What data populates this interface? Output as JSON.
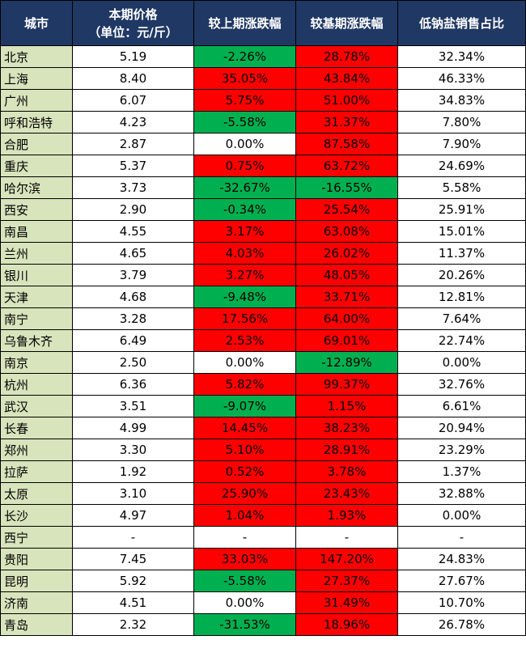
{
  "table": {
    "header": [
      [
        "城市"
      ],
      [
        "本期价格",
        "（单位：元/斤）"
      ],
      [
        "较上期涨跌幅"
      ],
      [
        "较基期涨跌幅"
      ],
      [
        "低钠盐销售占比"
      ]
    ],
    "rows": [
      [
        "北京",
        "5.19",
        "-2.26%",
        "28.78%",
        "32.34%"
      ],
      [
        "上海",
        "8.40",
        "35.05%",
        "43.84%",
        "46.33%"
      ],
      [
        "广州",
        "6.07",
        "5.75%",
        "51.00%",
        "34.83%"
      ],
      [
        "呼和浩特",
        "4.23",
        "-5.58%",
        "31.37%",
        "7.80%"
      ],
      [
        "合肥",
        "2.87",
        "0.00%",
        "87.58%",
        "7.90%"
      ],
      [
        "重庆",
        "5.37",
        "0.75%",
        "63.72%",
        "24.69%"
      ],
      [
        "哈尔滨",
        "3.73",
        "-32.67%",
        "-16.55%",
        "5.58%"
      ],
      [
        "西安",
        "2.90",
        "-0.34%",
        "25.54%",
        "25.91%"
      ],
      [
        "南昌",
        "4.55",
        "3.17%",
        "63.08%",
        "15.01%"
      ],
      [
        "兰州",
        "4.65",
        "4.03%",
        "26.02%",
        "11.37%"
      ],
      [
        "银川",
        "3.79",
        "3.27%",
        "48.05%",
        "20.26%"
      ],
      [
        "天津",
        "4.68",
        "-9.48%",
        "33.71%",
        "12.81%"
      ],
      [
        "南宁",
        "3.28",
        "17.56%",
        "64.00%",
        "7.64%"
      ],
      [
        "乌鲁木齐",
        "6.49",
        "2.53%",
        "69.01%",
        "22.74%"
      ],
      [
        "南京",
        "2.50",
        "0.00%",
        "-12.89%",
        "0.00%"
      ],
      [
        "杭州",
        "6.36",
        "5.82%",
        "99.37%",
        "32.76%"
      ],
      [
        "武汉",
        "3.51",
        "-9.07%",
        "1.15%",
        "6.61%"
      ],
      [
        "长春",
        "4.99",
        "14.45%",
        "38.23%",
        "20.94%"
      ],
      [
        "郑州",
        "3.30",
        "5.10%",
        "28.91%",
        "23.29%"
      ],
      [
        "拉萨",
        "1.92",
        "0.52%",
        "3.78%",
        "1.37%"
      ],
      [
        "太原",
        "3.10",
        "25.90%",
        "23.43%",
        "32.88%"
      ],
      [
        "长沙",
        "4.97",
        "1.04%",
        "1.93%",
        "0.00%"
      ],
      [
        "西宁",
        "-",
        "-",
        "-",
        "-"
      ],
      [
        "贵阳",
        "7.45",
        "33.03%",
        "147.20%",
        "24.83%"
      ],
      [
        "昆明",
        "5.92",
        "-5.58%",
        "27.37%",
        "27.67%"
      ],
      [
        "济南",
        "4.51",
        "0.00%",
        "31.49%",
        "10.70%"
      ],
      [
        "青岛",
        "2.32",
        "-31.53%",
        "18.96%",
        "26.78%"
      ]
    ],
    "fills": [
      [
        "#00b050",
        "#ff0000"
      ],
      [
        "#ff0000",
        "#ff0000"
      ],
      [
        "#ff0000",
        "#ff0000"
      ],
      [
        "#00b050",
        "#ff0000"
      ],
      [
        "#ffffff",
        "#ff0000"
      ],
      [
        "#ff0000",
        "#ff0000"
      ],
      [
        "#00b050",
        "#00b050"
      ],
      [
        "#00b050",
        "#ff0000"
      ],
      [
        "#ff0000",
        "#ff0000"
      ],
      [
        "#ff0000",
        "#ff0000"
      ],
      [
        "#ff0000",
        "#ff0000"
      ],
      [
        "#00b050",
        "#ff0000"
      ],
      [
        "#ff0000",
        "#ff0000"
      ],
      [
        "#ff0000",
        "#ff0000"
      ],
      [
        "#ffffff",
        "#00b050"
      ],
      [
        "#ff0000",
        "#ff0000"
      ],
      [
        "#00b050",
        "#ff0000"
      ],
      [
        "#ff0000",
        "#ff0000"
      ],
      [
        "#ff0000",
        "#ff0000"
      ],
      [
        "#ff0000",
        "#ff0000"
      ],
      [
        "#ff0000",
        "#ff0000"
      ],
      [
        "#ff0000",
        "#ff0000"
      ],
      [
        "#ffffff",
        "#ffffff"
      ],
      [
        "#ff0000",
        "#ff0000"
      ],
      [
        "#00b050",
        "#ff0000"
      ],
      [
        "#ffffff",
        "#ff0000"
      ],
      [
        "#00b050",
        "#ff0000"
      ]
    ],
    "header_color": "#203864",
    "city_color": "#d8e4bc"
  }
}
